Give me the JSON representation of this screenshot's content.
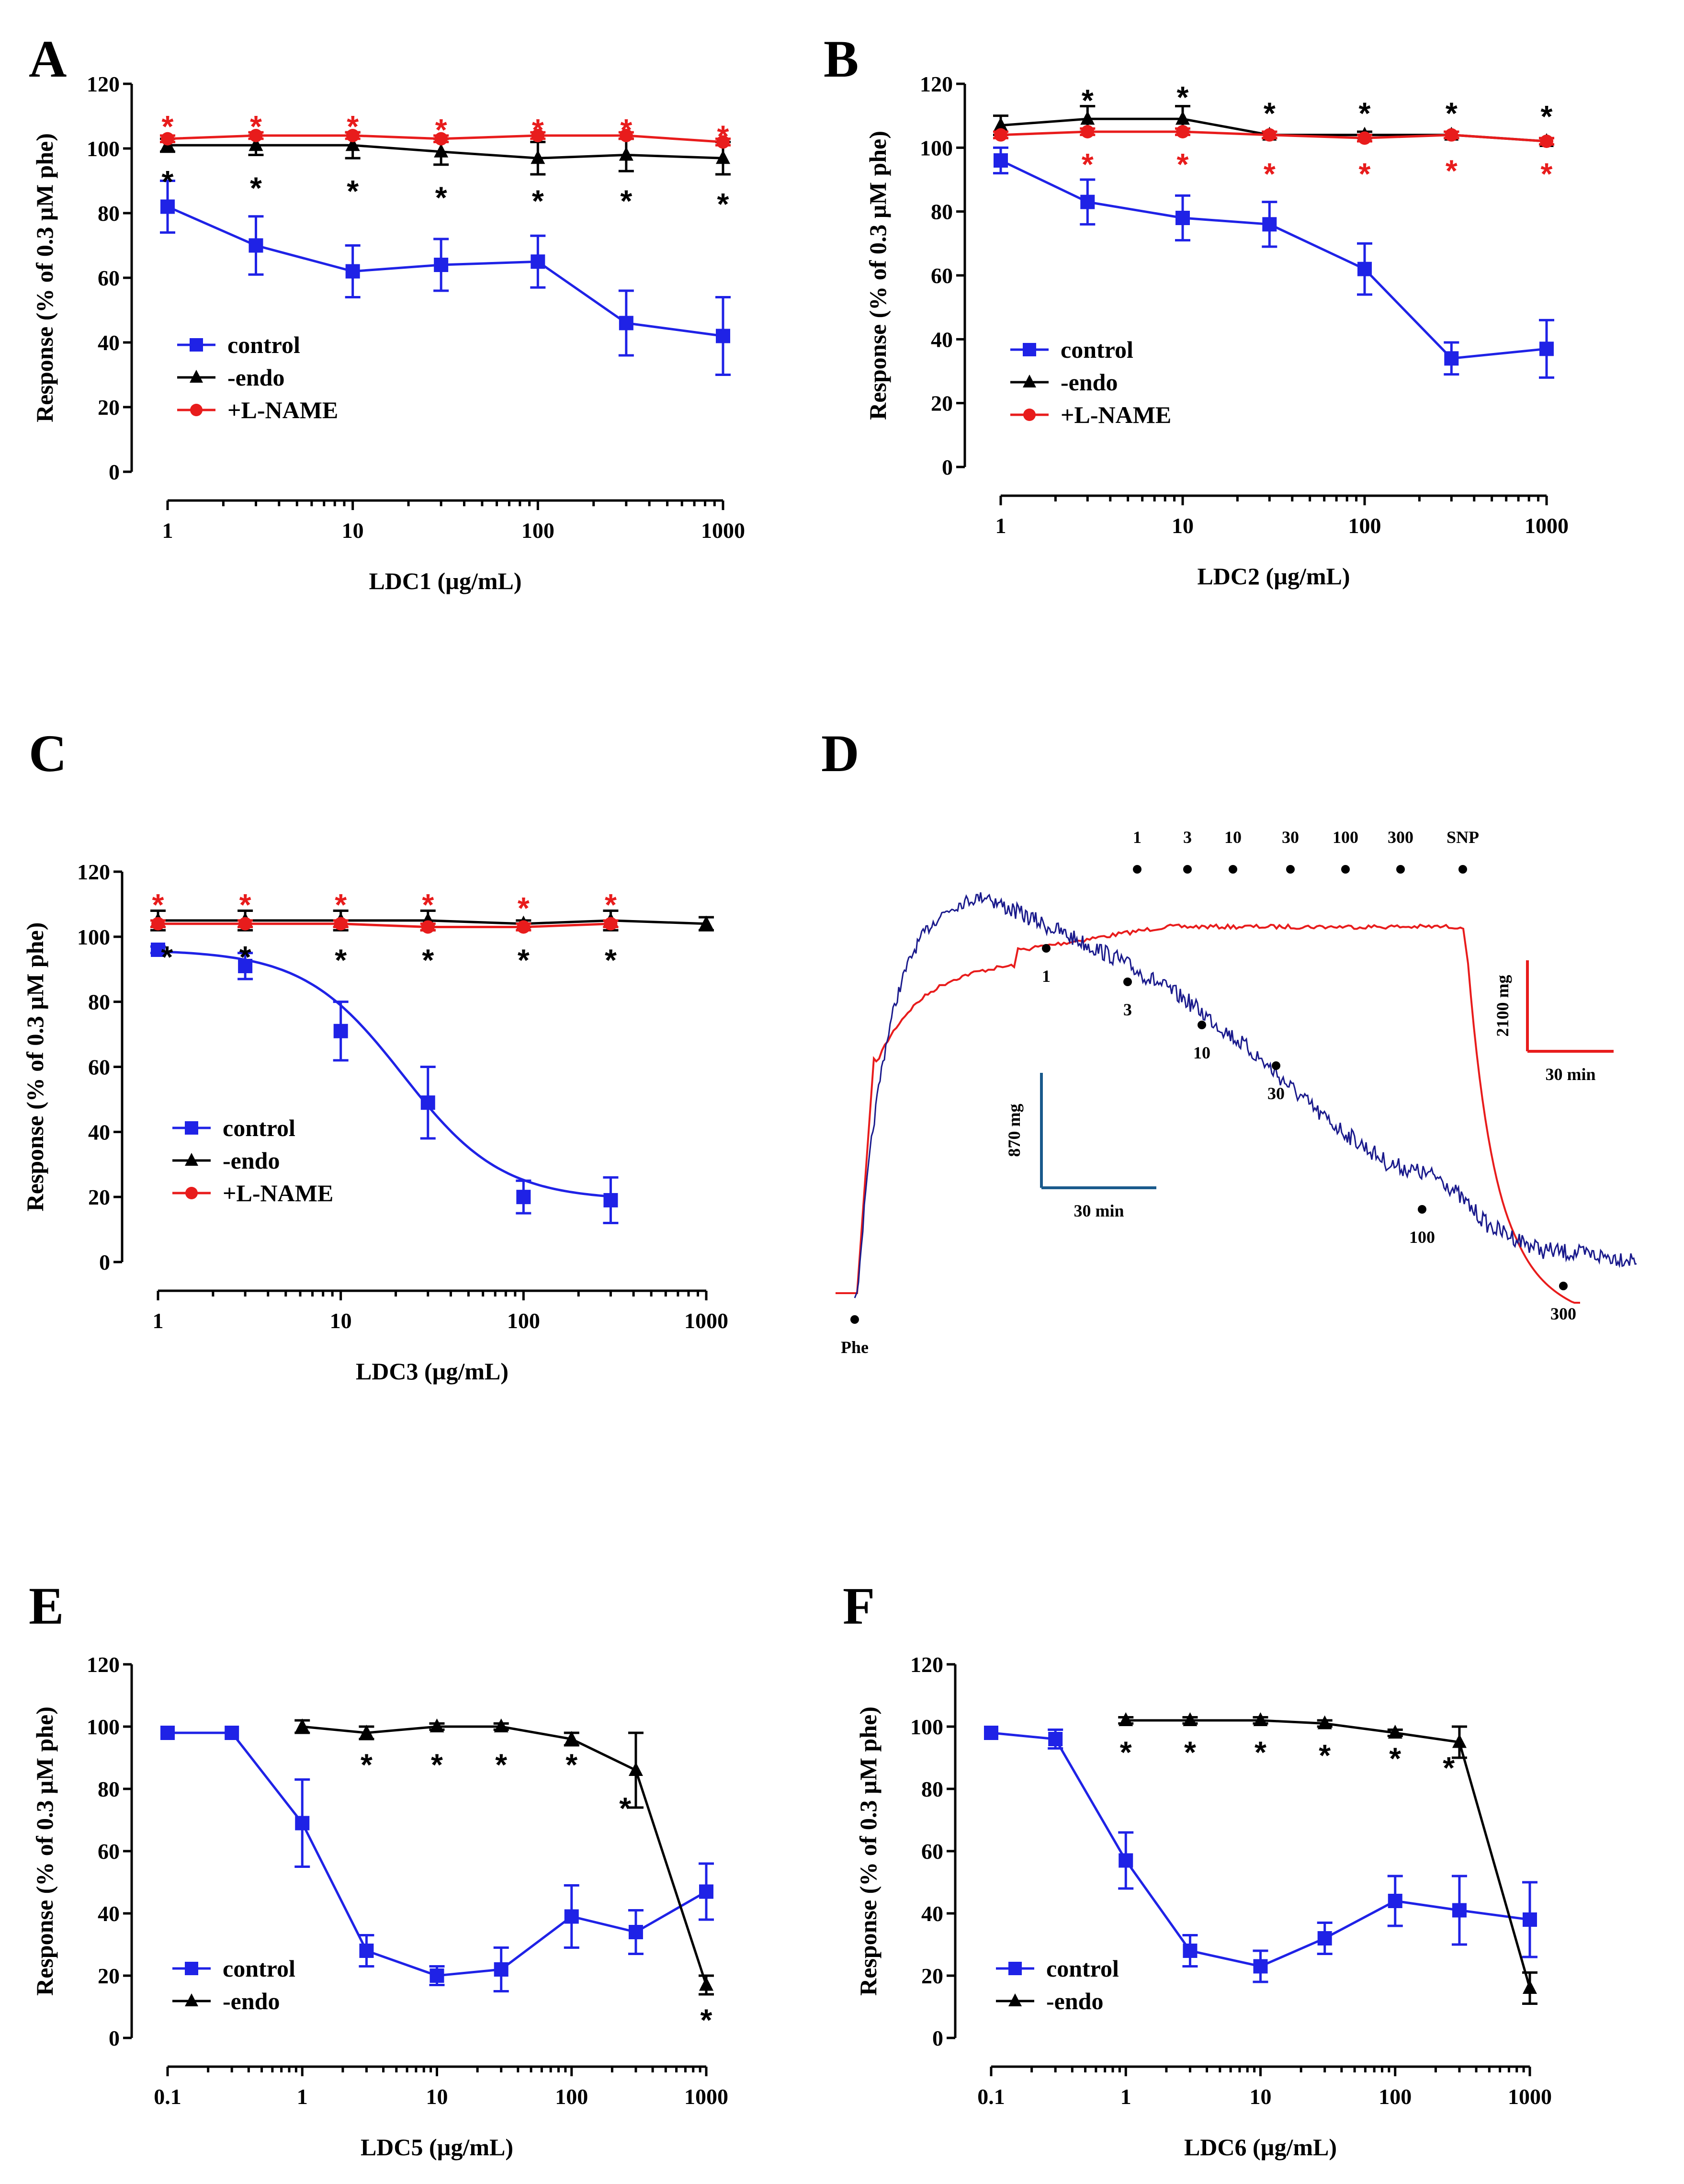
{
  "chart_data": [
    {
      "id": "A",
      "type": "line",
      "panel_label": "A",
      "xlabel": "LDC1 (µg/mL)",
      "ylabel": "Response (% of 0.3 µM phe)",
      "xscale": "log",
      "xlim": [
        1,
        1000
      ],
      "ylim": [
        0,
        120
      ],
      "xticks": [
        1,
        10,
        100,
        1000
      ],
      "xticklabels": [
        "1",
        "10",
        "100",
        "1000"
      ],
      "yticks": [
        0,
        20,
        40,
        60,
        80,
        100,
        120
      ],
      "yticklabels": [
        "0",
        "20",
        "40",
        "60",
        "80",
        "100",
        "120"
      ],
      "legend": [
        "control",
        "-endo",
        "+L-NAME"
      ],
      "series": [
        {
          "name": "control",
          "color": "#1f22e6",
          "marker": "square",
          "x": [
            1,
            3,
            10,
            30,
            100,
            300,
            1000
          ],
          "y": [
            82,
            70,
            62,
            64,
            65,
            46,
            42
          ],
          "err": [
            8,
            9,
            8,
            8,
            8,
            10,
            12
          ]
        },
        {
          "name": "-endo",
          "color": "#000000",
          "marker": "triangle",
          "x": [
            1,
            3,
            10,
            30,
            100,
            300,
            1000
          ],
          "y": [
            101,
            101,
            101,
            99,
            97,
            98,
            97
          ],
          "err": [
            2,
            3,
            4,
            4,
            5,
            5,
            5
          ]
        },
        {
          "name": "+L-NAME",
          "color": "#e81c1c",
          "marker": "circle",
          "x": [
            1,
            3,
            10,
            30,
            100,
            300,
            1000
          ],
          "y": [
            103,
            104,
            104,
            103,
            104,
            104,
            102
          ],
          "err": [
            1,
            1,
            1,
            1,
            1,
            1,
            1
          ]
        }
      ],
      "stars_red": {
        "x": [
          1,
          3,
          10,
          30,
          100,
          300,
          1000
        ],
        "y": [
          108,
          108,
          108,
          107,
          107,
          107,
          105
        ]
      },
      "stars_black": {
        "x": [
          1,
          3,
          10,
          30,
          100,
          300,
          1000
        ],
        "y": [
          91,
          89,
          88,
          86,
          85,
          85,
          84
        ]
      }
    },
    {
      "id": "B",
      "type": "line",
      "panel_label": "B",
      "xlabel": "LDC2 (µg/mL)",
      "ylabel": "Response (% of 0.3 µM phe)",
      "xscale": "log",
      "xlim": [
        1,
        1000
      ],
      "ylim": [
        0,
        120
      ],
      "xticks": [
        1,
        10,
        100,
        1000
      ],
      "xticklabels": [
        "1",
        "10",
        "100",
        "1000"
      ],
      "yticks": [
        0,
        20,
        40,
        60,
        80,
        100,
        120
      ],
      "yticklabels": [
        "0",
        "20",
        "40",
        "60",
        "80",
        "100",
        "120"
      ],
      "legend": [
        "control",
        "-endo",
        "+L-NAME"
      ],
      "series": [
        {
          "name": "control",
          "color": "#1f22e6",
          "marker": "square",
          "x": [
            1,
            3,
            10,
            30,
            100,
            300,
            1000
          ],
          "y": [
            96,
            83,
            78,
            76,
            62,
            34,
            37
          ],
          "err": [
            4,
            7,
            7,
            7,
            8,
            5,
            9
          ]
        },
        {
          "name": "-endo",
          "color": "#000000",
          "marker": "triangle",
          "x": [
            1,
            3,
            10,
            30,
            100,
            300,
            1000
          ],
          "y": [
            107,
            109,
            109,
            104,
            104,
            104,
            102
          ],
          "err": [
            3,
            4,
            4,
            1,
            1,
            1,
            1
          ]
        },
        {
          "name": "+L-NAME",
          "color": "#e81c1c",
          "marker": "circle",
          "x": [
            1,
            3,
            10,
            30,
            100,
            300,
            1000
          ],
          "y": [
            104,
            105,
            105,
            104,
            103,
            104,
            102
          ],
          "err": [
            1,
            1,
            1,
            1,
            1,
            1,
            1
          ]
        }
      ],
      "stars_red": {
        "x": [
          3,
          10,
          30,
          100,
          300,
          1000
        ],
        "y": [
          96,
          96,
          93,
          93,
          94,
          93
        ]
      },
      "stars_black": {
        "x": [
          3,
          10,
          30,
          100,
          300,
          1000
        ],
        "y": [
          116,
          117,
          112,
          112,
          112,
          111
        ]
      }
    },
    {
      "id": "C",
      "type": "line",
      "panel_label": "C",
      "xlabel": "LDC3 (µg/mL)",
      "ylabel": "Response (% of 0.3  µM phe)",
      "xscale": "log",
      "xlim": [
        1,
        1000
      ],
      "ylim": [
        0,
        120
      ],
      "xticks": [
        1,
        10,
        100,
        1000
      ],
      "xticklabels": [
        "1",
        "10",
        "100",
        "1000"
      ],
      "yticks": [
        0,
        20,
        40,
        60,
        80,
        100,
        120
      ],
      "yticklabels": [
        "0",
        "20",
        "40",
        "60",
        "80",
        "100",
        "120"
      ],
      "legend": [
        "control",
        "-endo",
        "+L-NAME"
      ],
      "series": [
        {
          "name": "control",
          "color": "#1f22e6",
          "marker": "square",
          "x": [
            1,
            3,
            10,
            30,
            100,
            300
          ],
          "y": [
            96,
            91,
            71,
            49,
            20,
            19
          ],
          "err": [
            1,
            4,
            9,
            11,
            5,
            7
          ],
          "fit": {
            "bottom": 19,
            "top": 96,
            "log_ec50": 1.34,
            "hill": 1.6
          }
        },
        {
          "name": "-endo",
          "color": "#000000",
          "marker": "triangle",
          "x": [
            1,
            3,
            10,
            30,
            100,
            300,
            1000
          ],
          "y": [
            105,
            105,
            105,
            105,
            104,
            105,
            104
          ],
          "err": [
            3,
            3,
            3,
            3,
            1,
            3,
            2
          ]
        },
        {
          "name": "+L-NAME",
          "color": "#e81c1c",
          "marker": "circle",
          "x": [
            1,
            3,
            10,
            30,
            100,
            300
          ],
          "y": [
            104,
            104,
            104,
            103,
            103,
            104
          ],
          "err": [
            1,
            1,
            1,
            1,
            1,
            1
          ]
        }
      ],
      "stars_red": {
        "x": [
          1,
          3,
          10,
          30,
          100,
          300
        ],
        "y": [
          111,
          111,
          111,
          111,
          110,
          111
        ]
      },
      "stars_black": {
        "x": [
          1.12,
          3,
          10,
          30,
          100,
          300
        ],
        "y": [
          95,
          95,
          94,
          94,
          94,
          94
        ]
      }
    },
    {
      "id": "E",
      "type": "line",
      "panel_label": "E",
      "xlabel": "LDC5 (µg/mL)",
      "ylabel": "Response (% of 0.3  µM phe)",
      "xscale": "log",
      "xlim": [
        0.1,
        1000
      ],
      "ylim": [
        0,
        120
      ],
      "xticks": [
        0.1,
        1,
        10,
        100,
        1000
      ],
      "xticklabels": [
        "0.1",
        "1",
        "10",
        "100",
        "1000"
      ],
      "yticks": [
        0,
        20,
        40,
        60,
        80,
        100,
        120
      ],
      "yticklabels": [
        "0",
        "20",
        "40",
        "60",
        "80",
        "100",
        "120"
      ],
      "legend": [
        "control",
        "-endo"
      ],
      "series": [
        {
          "name": "control",
          "color": "#1f22e6",
          "marker": "square",
          "x": [
            0.1,
            0.3,
            1,
            3,
            10,
            30,
            100,
            300,
            1000
          ],
          "y": [
            98,
            98,
            69,
            28,
            20,
            22,
            39,
            34,
            47
          ],
          "err": [
            0,
            0,
            14,
            5,
            3,
            7,
            10,
            7,
            9
          ]
        },
        {
          "name": "-endo",
          "color": "#000000",
          "marker": "triangle",
          "x": [
            1,
            3,
            10,
            30,
            100,
            300,
            1000
          ],
          "y": [
            100,
            98,
            100,
            100,
            96,
            86,
            17
          ],
          "err": [
            2,
            2,
            1,
            1,
            2,
            12,
            3
          ]
        }
      ],
      "stars_black": {
        "x": [
          3,
          10,
          30,
          100,
          250,
          1000
        ],
        "y": [
          89,
          89,
          89,
          89,
          75,
          7
        ]
      }
    },
    {
      "id": "F",
      "type": "line",
      "panel_label": "F",
      "xlabel": "LDC6 (µg/mL)",
      "ylabel": "Response (% of 0.3  µM phe)",
      "xscale": "log",
      "xlim": [
        0.1,
        1000
      ],
      "ylim": [
        0,
        120
      ],
      "xticks": [
        0.1,
        1,
        10,
        100,
        1000
      ],
      "xticklabels": [
        "0.1",
        "1",
        "10",
        "100",
        "1000"
      ],
      "yticks": [
        0,
        20,
        40,
        60,
        80,
        100,
        120
      ],
      "yticklabels": [
        "0",
        "20",
        "40",
        "60",
        "80",
        "100",
        "120"
      ],
      "legend": [
        "control",
        "-endo"
      ],
      "series": [
        {
          "name": "control",
          "color": "#1f22e6",
          "marker": "square",
          "x": [
            0.1,
            0.3,
            1,
            3,
            10,
            30,
            100,
            300,
            1000
          ],
          "y": [
            98,
            96,
            57,
            28,
            23,
            32,
            44,
            41,
            38
          ],
          "err": [
            0,
            3,
            9,
            5,
            5,
            5,
            8,
            11,
            12
          ]
        },
        {
          "name": "-endo",
          "color": "#000000",
          "marker": "triangle",
          "x": [
            1,
            3,
            10,
            30,
            100,
            300,
            1000
          ],
          "y": [
            102,
            102,
            102,
            101,
            98,
            95,
            16
          ],
          "err": [
            1,
            1,
            1,
            1,
            1,
            5,
            5
          ]
        }
      ],
      "stars_black": {
        "x": [
          1,
          3,
          10,
          30,
          100,
          250
        ],
        "y": [
          93,
          93,
          93,
          92,
          91,
          88
        ]
      }
    }
  ],
  "tracing": {
    "panel_label": "D",
    "top_labels": [
      "1",
      "3",
      "10",
      "30",
      "100",
      "300",
      "SNP"
    ],
    "bottom_labels": [
      "1",
      "3",
      "10",
      "30",
      "100",
      "300"
    ],
    "phe_label": "Phe",
    "scale_blue_vertical": "870 mg",
    "scale_blue_horizontal": "30 min",
    "scale_red_vertical": "2100 mg",
    "scale_red_horizontal": "30 min",
    "colors": {
      "control_trace": "#1a1a8c",
      "lname_trace": "#e81c1c"
    }
  }
}
